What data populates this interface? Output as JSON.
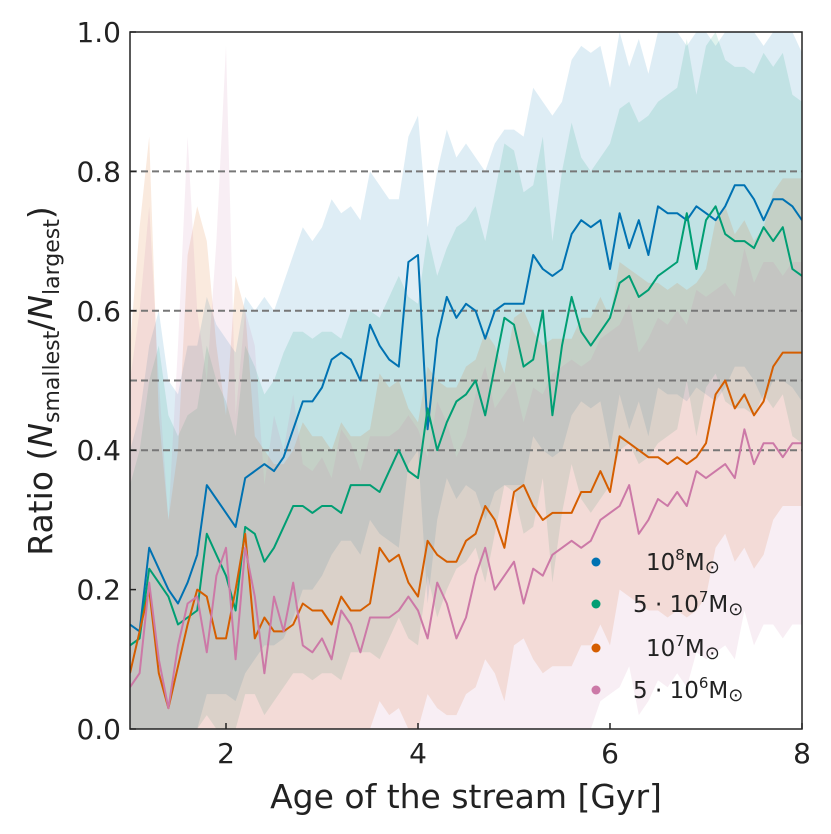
{
  "chart_data": {
    "type": "line",
    "title": "",
    "xlabel": "Age of the stream [Gyr]",
    "ylabel": {
      "prefix": "Ratio (",
      "N1": "N",
      "sub1": "smallest",
      "slash": "/",
      "N2": "N",
      "sub2": "largest",
      "suffix": ")"
    },
    "xlim": [
      1,
      8
    ],
    "ylim": [
      0,
      1
    ],
    "xticks": [
      2,
      4,
      6,
      8
    ],
    "xtick_labels": [
      "2",
      "4",
      "6",
      "8"
    ],
    "yticks": [
      0.0,
      0.2,
      0.4,
      0.6,
      0.8,
      1.0
    ],
    "ytick_labels": [
      "0.0",
      "0.2",
      "0.4",
      "0.6",
      "0.8",
      "1.0"
    ],
    "reference_lines": [
      0.4,
      0.5,
      0.6,
      0.8
    ],
    "legend_position": "lower-right",
    "x": [
      1.0,
      1.1,
      1.2,
      1.3,
      1.4,
      1.5,
      1.6,
      1.7,
      1.8,
      1.9,
      2.0,
      2.1,
      2.2,
      2.3,
      2.4,
      2.5,
      2.6,
      2.7,
      2.8,
      2.9,
      3.0,
      3.1,
      3.2,
      3.3,
      3.4,
      3.5,
      3.6,
      3.7,
      3.8,
      3.9,
      4.0,
      4.1,
      4.2,
      4.3,
      4.4,
      4.5,
      4.6,
      4.7,
      4.8,
      4.9,
      5.0,
      5.1,
      5.2,
      5.3,
      5.4,
      5.5,
      5.6,
      5.7,
      5.8,
      5.9,
      6.0,
      6.1,
      6.2,
      6.3,
      6.4,
      6.5,
      6.6,
      6.7,
      6.8,
      6.9,
      7.0,
      7.1,
      7.2,
      7.3,
      7.4,
      7.5,
      7.6,
      7.7,
      7.8,
      7.9,
      8.0
    ],
    "series": [
      {
        "name": "1e8",
        "label": {
          "pre": "10",
          "sup": "8",
          "post": "M",
          "sym": "⊙"
        },
        "color": "#0072b2",
        "values": [
          0.15,
          0.14,
          0.26,
          0.23,
          0.2,
          0.18,
          0.21,
          0.25,
          0.35,
          0.33,
          0.31,
          0.29,
          0.36,
          0.37,
          0.38,
          0.37,
          0.39,
          0.43,
          0.47,
          0.47,
          0.49,
          0.53,
          0.54,
          0.53,
          0.5,
          0.58,
          0.55,
          0.53,
          0.52,
          0.67,
          0.68,
          0.43,
          0.56,
          0.62,
          0.59,
          0.61,
          0.6,
          0.56,
          0.6,
          0.61,
          0.61,
          0.61,
          0.68,
          0.66,
          0.65,
          0.66,
          0.71,
          0.73,
          0.72,
          0.73,
          0.66,
          0.74,
          0.69,
          0.73,
          0.68,
          0.75,
          0.74,
          0.74,
          0.73,
          0.75,
          0.74,
          0.73,
          0.75,
          0.78,
          0.78,
          0.76,
          0.73,
          0.76,
          0.76,
          0.75,
          0.73
        ],
        "band_upper": [
          0.4,
          0.45,
          0.55,
          0.6,
          0.5,
          0.48,
          0.55,
          0.55,
          0.62,
          0.58,
          0.56,
          0.54,
          0.62,
          0.6,
          0.62,
          0.6,
          0.64,
          0.68,
          0.72,
          0.7,
          0.72,
          0.76,
          0.74,
          0.75,
          0.73,
          0.8,
          0.78,
          0.76,
          0.76,
          0.85,
          0.88,
          0.72,
          0.8,
          0.86,
          0.82,
          0.84,
          0.82,
          0.8,
          0.84,
          0.86,
          0.86,
          0.85,
          0.92,
          0.9,
          0.88,
          0.9,
          0.96,
          0.98,
          0.97,
          0.98,
          0.92,
          1.0,
          0.95,
          0.99,
          0.94,
          1.0,
          1.0,
          1.0,
          0.98,
          1.0,
          1.0,
          0.98,
          1.0,
          1.0,
          1.0,
          1.0,
          0.98,
          1.0,
          1.0,
          1.0,
          0.97
        ],
        "band_lower": [
          0.0,
          0.0,
          0.0,
          0.0,
          0.0,
          0.0,
          0.0,
          0.0,
          0.05,
          0.05,
          0.05,
          0.04,
          0.08,
          0.1,
          0.12,
          0.12,
          0.13,
          0.16,
          0.2,
          0.2,
          0.22,
          0.25,
          0.27,
          0.27,
          0.25,
          0.3,
          0.28,
          0.27,
          0.26,
          0.38,
          0.4,
          0.18,
          0.3,
          0.36,
          0.33,
          0.35,
          0.34,
          0.3,
          0.34,
          0.35,
          0.35,
          0.35,
          0.42,
          0.4,
          0.39,
          0.4,
          0.45,
          0.47,
          0.46,
          0.47,
          0.4,
          0.48,
          0.43,
          0.47,
          0.42,
          0.49,
          0.48,
          0.48,
          0.47,
          0.49,
          0.48,
          0.47,
          0.49,
          0.52,
          0.52,
          0.5,
          0.47,
          0.5,
          0.5,
          0.49,
          0.47
        ]
      },
      {
        "name": "5e7",
        "label": {
          "pre": "5 · 10",
          "sup": "7",
          "post": "M",
          "sym": "⊙"
        },
        "color": "#009e73",
        "values": [
          0.12,
          0.13,
          0.23,
          0.21,
          0.19,
          0.15,
          0.16,
          0.17,
          0.28,
          0.25,
          0.22,
          0.17,
          0.29,
          0.28,
          0.24,
          0.26,
          0.29,
          0.32,
          0.32,
          0.31,
          0.32,
          0.32,
          0.31,
          0.35,
          0.35,
          0.35,
          0.34,
          0.37,
          0.4,
          0.37,
          0.36,
          0.46,
          0.4,
          0.44,
          0.47,
          0.48,
          0.5,
          0.45,
          0.52,
          0.59,
          0.58,
          0.52,
          0.53,
          0.6,
          0.45,
          0.55,
          0.62,
          0.57,
          0.55,
          0.57,
          0.59,
          0.64,
          0.65,
          0.62,
          0.63,
          0.65,
          0.66,
          0.67,
          0.74,
          0.66,
          0.73,
          0.75,
          0.71,
          0.7,
          0.7,
          0.69,
          0.72,
          0.7,
          0.72,
          0.66,
          0.65
        ],
        "band_upper": [
          0.35,
          0.4,
          0.5,
          0.55,
          0.45,
          0.42,
          0.45,
          0.46,
          0.55,
          0.5,
          0.47,
          0.42,
          0.55,
          0.52,
          0.48,
          0.5,
          0.54,
          0.57,
          0.57,
          0.56,
          0.57,
          0.57,
          0.56,
          0.6,
          0.6,
          0.6,
          0.59,
          0.62,
          0.65,
          0.62,
          0.61,
          0.71,
          0.65,
          0.69,
          0.72,
          0.73,
          0.75,
          0.7,
          0.77,
          0.84,
          0.83,
          0.77,
          0.78,
          0.85,
          0.7,
          0.8,
          0.87,
          0.82,
          0.8,
          0.82,
          0.84,
          0.89,
          0.9,
          0.87,
          0.88,
          0.9,
          0.91,
          0.92,
          0.99,
          0.91,
          0.98,
          1.0,
          0.96,
          0.95,
          0.95,
          0.94,
          0.97,
          0.95,
          0.97,
          0.91,
          0.9
        ],
        "band_lower": [
          0.0,
          0.0,
          0.0,
          0.0,
          0.0,
          0.0,
          0.0,
          0.0,
          0.02,
          0.0,
          0.0,
          0.0,
          0.05,
          0.05,
          0.02,
          0.04,
          0.06,
          0.08,
          0.08,
          0.07,
          0.08,
          0.08,
          0.07,
          0.11,
          0.11,
          0.11,
          0.1,
          0.13,
          0.16,
          0.13,
          0.12,
          0.22,
          0.16,
          0.2,
          0.23,
          0.24,
          0.26,
          0.21,
          0.28,
          0.35,
          0.34,
          0.28,
          0.29,
          0.36,
          0.21,
          0.31,
          0.38,
          0.33,
          0.31,
          0.33,
          0.35,
          0.4,
          0.41,
          0.38,
          0.39,
          0.41,
          0.42,
          0.43,
          0.5,
          0.42,
          0.49,
          0.51,
          0.47,
          0.46,
          0.46,
          0.45,
          0.48,
          0.46,
          0.48,
          0.42,
          0.41
        ]
      },
      {
        "name": "1e7",
        "label": {
          "pre": "10",
          "sup": "7",
          "post": "M",
          "sym": "⊙"
        },
        "color": "#d55e00",
        "values": [
          0.08,
          0.14,
          0.2,
          0.08,
          0.03,
          0.09,
          0.15,
          0.2,
          0.19,
          0.13,
          0.13,
          0.2,
          0.28,
          0.13,
          0.16,
          0.14,
          0.14,
          0.15,
          0.18,
          0.17,
          0.17,
          0.15,
          0.19,
          0.17,
          0.17,
          0.18,
          0.26,
          0.24,
          0.25,
          0.21,
          0.19,
          0.27,
          0.25,
          0.24,
          0.24,
          0.27,
          0.28,
          0.32,
          0.3,
          0.26,
          0.34,
          0.35,
          0.32,
          0.3,
          0.31,
          0.31,
          0.31,
          0.34,
          0.34,
          0.37,
          0.34,
          0.42,
          0.41,
          0.4,
          0.39,
          0.39,
          0.38,
          0.39,
          0.38,
          0.39,
          0.41,
          0.48,
          0.5,
          0.46,
          0.48,
          0.45,
          0.47,
          0.52,
          0.54,
          0.54,
          0.54
        ],
        "band_upper": [
          0.55,
          0.72,
          0.85,
          0.45,
          0.3,
          0.4,
          0.68,
          0.75,
          0.7,
          0.55,
          0.45,
          0.65,
          0.6,
          0.42,
          0.4,
          0.38,
          0.38,
          0.4,
          0.44,
          0.42,
          0.42,
          0.4,
          0.44,
          0.42,
          0.42,
          0.43,
          0.51,
          0.49,
          0.5,
          0.46,
          0.44,
          0.52,
          0.5,
          0.49,
          0.49,
          0.52,
          0.53,
          0.57,
          0.55,
          0.51,
          0.59,
          0.6,
          0.57,
          0.55,
          0.56,
          0.56,
          0.56,
          0.59,
          0.59,
          0.62,
          0.59,
          0.67,
          0.66,
          0.65,
          0.64,
          0.64,
          0.63,
          0.64,
          0.63,
          0.64,
          0.66,
          0.73,
          0.75,
          0.71,
          0.73,
          0.7,
          0.72,
          0.77,
          0.79,
          0.79,
          0.79
        ],
        "band_lower": [
          0.0,
          0.0,
          0.0,
          0.0,
          0.0,
          0.0,
          0.0,
          0.0,
          0.0,
          0.0,
          0.0,
          0.0,
          0.0,
          0.0,
          0.0,
          0.0,
          0.0,
          0.0,
          0.0,
          0.0,
          0.0,
          0.0,
          0.0,
          0.0,
          0.0,
          0.0,
          0.04,
          0.02,
          0.03,
          0.0,
          0.0,
          0.05,
          0.03,
          0.02,
          0.02,
          0.05,
          0.06,
          0.1,
          0.08,
          0.04,
          0.12,
          0.13,
          0.1,
          0.08,
          0.09,
          0.09,
          0.09,
          0.12,
          0.12,
          0.15,
          0.12,
          0.2,
          0.19,
          0.18,
          0.17,
          0.17,
          0.16,
          0.17,
          0.16,
          0.17,
          0.19,
          0.26,
          0.28,
          0.24,
          0.26,
          0.23,
          0.25,
          0.3,
          0.32,
          0.32,
          0.32
        ]
      },
      {
        "name": "5e6",
        "label": {
          "pre": "5 · 10",
          "sup": "6",
          "post": "M",
          "sym": "⊙"
        },
        "color": "#cc79a7",
        "values": [
          0.06,
          0.08,
          0.21,
          0.1,
          0.03,
          0.12,
          0.18,
          0.19,
          0.11,
          0.22,
          0.26,
          0.1,
          0.26,
          0.19,
          0.08,
          0.19,
          0.14,
          0.21,
          0.12,
          0.11,
          0.13,
          0.1,
          0.17,
          0.15,
          0.11,
          0.16,
          0.16,
          0.16,
          0.17,
          0.19,
          0.17,
          0.13,
          0.21,
          0.18,
          0.13,
          0.16,
          0.22,
          0.26,
          0.2,
          0.22,
          0.24,
          0.18,
          0.23,
          0.22,
          0.25,
          0.26,
          0.27,
          0.26,
          0.27,
          0.3,
          0.31,
          0.32,
          0.35,
          0.28,
          0.3,
          0.33,
          0.32,
          0.34,
          0.32,
          0.37,
          0.36,
          0.37,
          0.38,
          0.36,
          0.43,
          0.38,
          0.41,
          0.41,
          0.39,
          0.41,
          0.41
        ],
        "band_upper": [
          0.5,
          0.6,
          0.75,
          0.5,
          0.3,
          0.55,
          0.85,
          0.6,
          0.5,
          0.7,
          0.98,
          0.45,
          0.6,
          0.55,
          0.35,
          0.45,
          0.4,
          0.48,
          0.38,
          0.37,
          0.39,
          0.36,
          0.43,
          0.41,
          0.37,
          0.42,
          0.42,
          0.42,
          0.43,
          0.45,
          0.43,
          0.39,
          0.47,
          0.44,
          0.39,
          0.42,
          0.48,
          0.52,
          0.46,
          0.48,
          0.5,
          0.44,
          0.49,
          0.48,
          0.51,
          0.52,
          0.53,
          0.52,
          0.53,
          0.56,
          0.57,
          0.58,
          0.61,
          0.54,
          0.56,
          0.59,
          0.58,
          0.6,
          0.58,
          0.63,
          0.62,
          0.63,
          0.64,
          0.62,
          0.69,
          0.64,
          0.67,
          0.67,
          0.65,
          0.67,
          0.67
        ],
        "band_lower": [
          0.0,
          0.0,
          0.0,
          0.0,
          0.0,
          0.0,
          0.0,
          0.0,
          0.0,
          0.0,
          0.0,
          0.0,
          0.0,
          0.0,
          0.0,
          0.0,
          0.0,
          0.0,
          0.0,
          0.0,
          0.0,
          0.0,
          0.0,
          0.0,
          0.0,
          0.0,
          0.0,
          0.0,
          0.0,
          0.0,
          0.0,
          0.0,
          0.0,
          0.0,
          0.0,
          0.0,
          0.0,
          0.0,
          0.0,
          0.0,
          0.0,
          0.0,
          0.0,
          0.0,
          0.0,
          0.0,
          0.0,
          0.0,
          0.0,
          0.04,
          0.05,
          0.06,
          0.09,
          0.02,
          0.04,
          0.07,
          0.06,
          0.08,
          0.06,
          0.11,
          0.1,
          0.11,
          0.12,
          0.1,
          0.17,
          0.12,
          0.15,
          0.15,
          0.13,
          0.15,
          0.15
        ]
      }
    ]
  }
}
